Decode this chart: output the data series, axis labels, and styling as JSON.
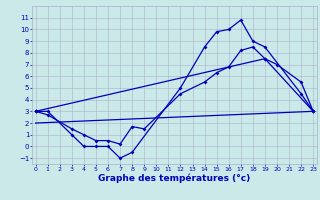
{
  "title": "Graphe des températures (°c)",
  "bg_color": "#cce9e9",
  "grid_color": "#aab0cc",
  "line_color": "#0000bb",
  "series": {
    "curve1_x": [
      0,
      1,
      3,
      4,
      5,
      6,
      7,
      8,
      12,
      14,
      15,
      16,
      17,
      18,
      19,
      22,
      23
    ],
    "curve1_y": [
      3,
      3,
      1,
      0,
      0,
      0,
      -1,
      -0.5,
      5,
      8.5,
      9.8,
      10,
      10.8,
      9,
      8.5,
      4.5,
      3
    ],
    "curve2_x": [
      0,
      1,
      3,
      4,
      5,
      6,
      7,
      8,
      9,
      12,
      14,
      15,
      16,
      17,
      18,
      19,
      20,
      22,
      23
    ],
    "curve2_y": [
      3,
      2.7,
      1.5,
      1,
      0.5,
      0.5,
      0.2,
      1.7,
      1.5,
      4.5,
      5.5,
      6.3,
      6.8,
      8.2,
      8.5,
      7.5,
      7.0,
      5.5,
      3
    ],
    "curve3_x": [
      0,
      19,
      23
    ],
    "curve3_y": [
      3,
      7.5,
      3
    ],
    "curve4_x": [
      0,
      23
    ],
    "curve4_y": [
      2,
      3
    ]
  },
  "ylim": [
    -1.5,
    12
  ],
  "xlim": [
    -0.3,
    23.3
  ],
  "yticks": [
    -1,
    0,
    1,
    2,
    3,
    4,
    5,
    6,
    7,
    8,
    9,
    10,
    11
  ],
  "xticks": [
    0,
    1,
    2,
    3,
    4,
    5,
    6,
    7,
    8,
    9,
    10,
    11,
    12,
    13,
    14,
    15,
    16,
    17,
    18,
    19,
    20,
    21,
    22,
    23
  ],
  "xlabel_fontsize": 6.5,
  "tick_fontsize": 4.5,
  "lw": 0.9,
  "ms": 2.0
}
